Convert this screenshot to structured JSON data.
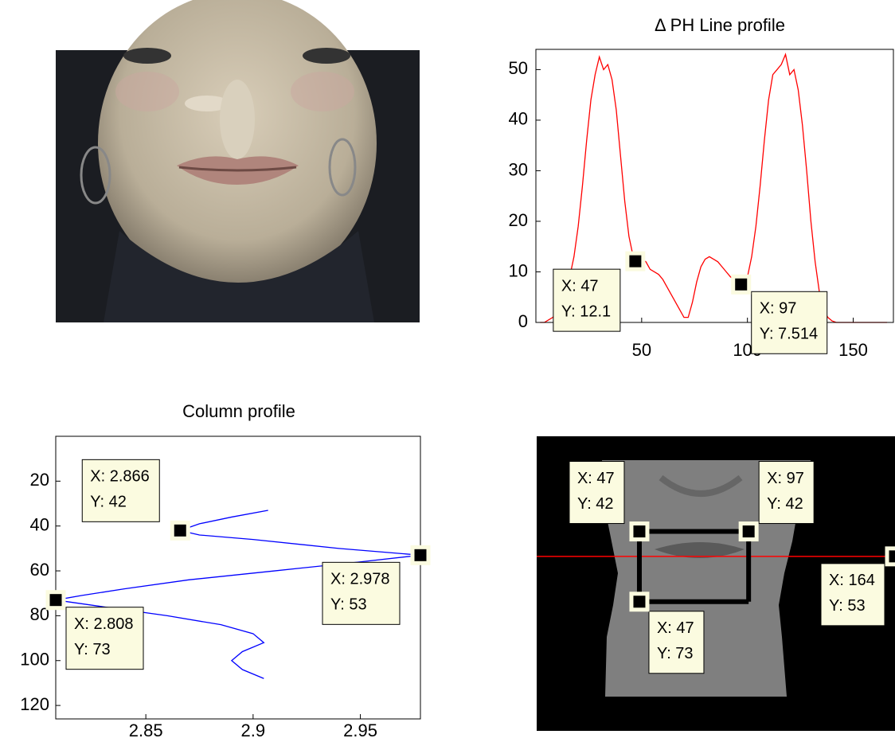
{
  "chart_data": [
    {
      "type": "line",
      "title": "Δ PH Line profile",
      "x": [
        2,
        4,
        6,
        8,
        10,
        12,
        14,
        16,
        18,
        20,
        22,
        24,
        26,
        28,
        30,
        32,
        34,
        36,
        38,
        40,
        42,
        44,
        46,
        48,
        50,
        52,
        54,
        56,
        58,
        60,
        62,
        64,
        66,
        68,
        70,
        72,
        74,
        76,
        78,
        80,
        82,
        84,
        86,
        88,
        90,
        92,
        94,
        96,
        98,
        100,
        102,
        104,
        106,
        108,
        110,
        112,
        114,
        116,
        118,
        120,
        122,
        124,
        126,
        128,
        130,
        132,
        134,
        136,
        138,
        140,
        142,
        146,
        150,
        154,
        158,
        162,
        166
      ],
      "series": [
        {
          "color": "#ff0000",
          "values": [
            0,
            0,
            0.5,
            1,
            2,
            4,
            6,
            9,
            13,
            19,
            27,
            36,
            44,
            49,
            52.5,
            50,
            51,
            48,
            42,
            33,
            24,
            17,
            13,
            12.2,
            12.5,
            12,
            10.5,
            10,
            9.5,
            8.5,
            7,
            5.5,
            4,
            2.5,
            1,
            1,
            4,
            8,
            11,
            12.5,
            13,
            12.5,
            12,
            11,
            10,
            9,
            8.5,
            7.8,
            7.5,
            9,
            13,
            19,
            27,
            36,
            44,
            49,
            50,
            51,
            53,
            49,
            50,
            46,
            39,
            30,
            20,
            12,
            6,
            2.5,
            1,
            0.3,
            0,
            0,
            0,
            0,
            0,
            0,
            0
          ]
        }
      ],
      "xlim": [
        0,
        169
      ],
      "ylim": [
        0,
        54
      ],
      "xticks": [
        50,
        100,
        150
      ],
      "yticks": [
        0,
        10,
        20,
        30,
        40,
        50
      ],
      "datatips": [
        {
          "x": 47,
          "y": 12.1,
          "text": [
            "X: 47",
            "Y: 12.1"
          ]
        },
        {
          "x": 97,
          "y": 7.514,
          "text": [
            "X: 97",
            "Y: 7.514"
          ]
        }
      ]
    },
    {
      "type": "column-profile",
      "title": "Column profile",
      "y": [
        33,
        36,
        39,
        42,
        44,
        46,
        50,
        53,
        56,
        60,
        64,
        68,
        71,
        73,
        76,
        80,
        84,
        88,
        92,
        96,
        100,
        104,
        108
      ],
      "series": [
        {
          "color": "#0000ff",
          "values": [
            2.907,
            2.89,
            2.875,
            2.866,
            2.875,
            2.9,
            2.94,
            2.978,
            2.95,
            2.91,
            2.87,
            2.84,
            2.82,
            2.808,
            2.83,
            2.86,
            2.885,
            2.9,
            2.905,
            2.895,
            2.89,
            2.895,
            2.905
          ]
        }
      ],
      "xlim": [
        2.808,
        2.978
      ],
      "ylim": [
        0,
        126
      ],
      "y_reversed": true,
      "xticks": [
        2.85,
        2.9,
        2.95
      ],
      "yticks": [
        20,
        40,
        60,
        80,
        100,
        120
      ],
      "datatips": [
        {
          "x": 2.866,
          "y": 42,
          "text": [
            "X: 2.866",
            "Y: 42"
          ]
        },
        {
          "x": 2.978,
          "y": 53,
          "text": [
            "X: 2.978",
            "Y: 53"
          ]
        },
        {
          "x": 2.808,
          "y": 73,
          "text": [
            "X: 2.808",
            "Y: 73"
          ]
        }
      ]
    },
    {
      "type": "image",
      "xlim": [
        0,
        164
      ],
      "ylim": [
        0,
        130
      ],
      "datatips": [
        {
          "x": 47,
          "y": 42,
          "text": [
            "X: 47",
            "Y: 42"
          ]
        },
        {
          "x": 97,
          "y": 42,
          "text": [
            "X: 97",
            "Y: 42"
          ]
        },
        {
          "x": 47,
          "y": 73,
          "text": [
            "X: 47",
            "Y: 73"
          ]
        },
        {
          "x": 164,
          "y": 53,
          "text": [
            "X: 164",
            "Y: 53"
          ]
        }
      ]
    }
  ]
}
